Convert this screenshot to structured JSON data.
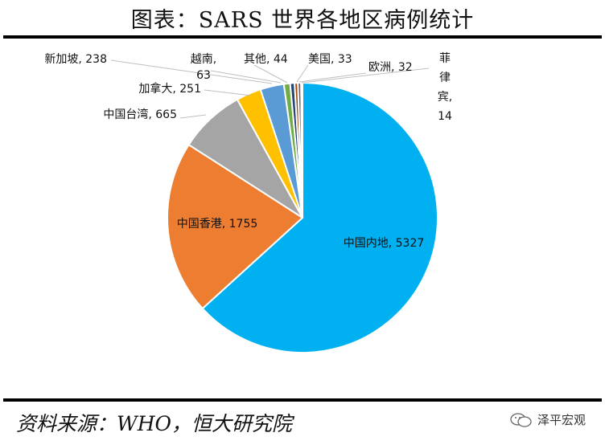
{
  "title": "图表：SARS 世界各地区病例统计",
  "source": "资料来源：WHO，恒大研究院",
  "watermark": "泽平宏观",
  "chart_data": {
    "type": "pie",
    "slices": [
      {
        "label": "中国内地, 5327",
        "value": 5327,
        "color": "#00B0F0"
      },
      {
        "label": "中国香港, 1755",
        "value": 1755,
        "color": "#ED7D31"
      },
      {
        "label": "中国台湾, 665",
        "value": 665,
        "color": "#A5A5A5"
      },
      {
        "label": "加拿大, 251",
        "value": 251,
        "color": "#FFC000"
      },
      {
        "label": "新加坡, 238",
        "value": 238,
        "color": "#5B9BD5"
      },
      {
        "label": "越南, 63",
        "value": 63,
        "color": "#70AD47"
      },
      {
        "label": "其他, 44",
        "value": 44,
        "color": "#264478"
      },
      {
        "label": "美国, 33",
        "value": 33,
        "color": "#9E480E"
      },
      {
        "label": "欧洲, 32",
        "value": 32,
        "color": "#636363"
      },
      {
        "label": "菲律宾, 14",
        "value": 14,
        "color": "#997300"
      }
    ]
  }
}
